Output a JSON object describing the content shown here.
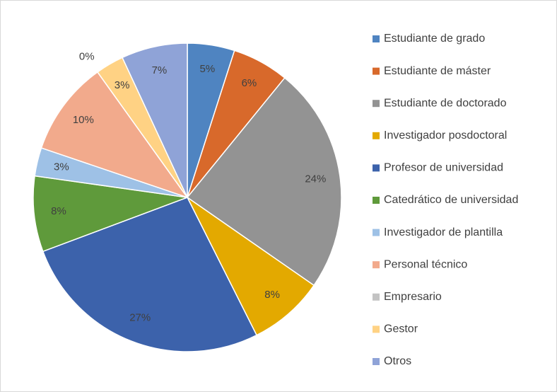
{
  "chart_data": {
    "type": "pie",
    "categories": [
      "Estudiante de grado",
      "Estudiante de máster",
      "Estudiante de doctorado",
      "Investigador posdoctoral",
      "Profesor de universidad",
      "Catedrático de universidad",
      "Investigador de plantilla",
      "Personal técnico",
      "Empresario",
      "Gestor",
      "Otros"
    ],
    "values": [
      5,
      6,
      24,
      8,
      27,
      8,
      3,
      10,
      0,
      3,
      7
    ],
    "value_labels": [
      "5%",
      "6%",
      "24%",
      "8%",
      "27%",
      "8%",
      "3%",
      "10%",
      "0%",
      "3%",
      "7%"
    ],
    "colors": [
      "#4f84c1",
      "#d8692b",
      "#939393",
      "#e3a900",
      "#3c62ab",
      "#5f9a3b",
      "#9ec1e6",
      "#f2aa8c",
      "#c3c3c3",
      "#ffd284",
      "#8fa3d7"
    ],
    "legend": "right"
  }
}
